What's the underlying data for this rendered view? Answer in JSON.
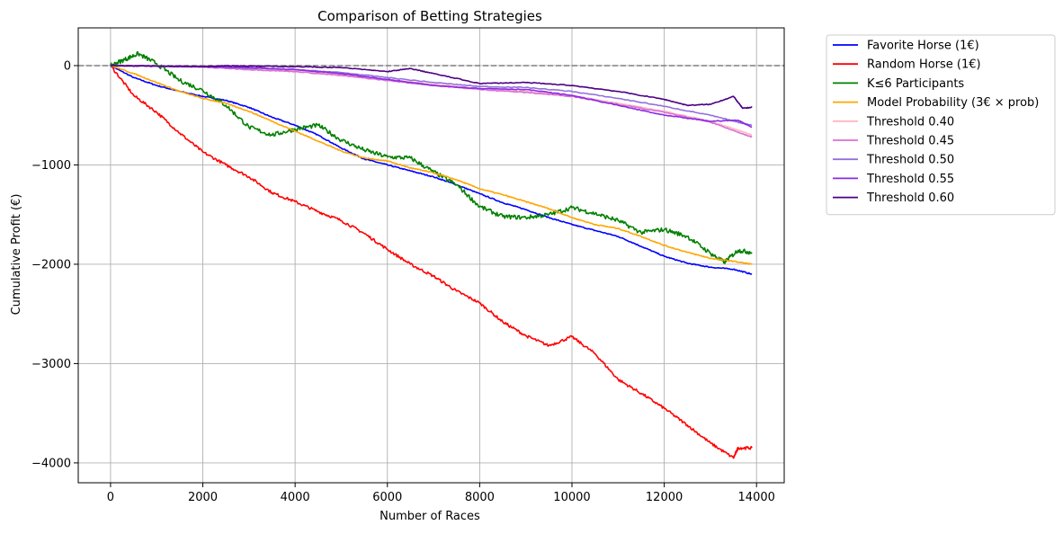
{
  "chart_data": {
    "type": "line",
    "title": "Comparison of Betting Strategies",
    "xlabel": "Number of Races",
    "ylabel": "Cumulative Profit (€)",
    "xlim": [
      -700,
      14600
    ],
    "ylim": [
      -4200,
      380
    ],
    "xticks": [
      0,
      2000,
      4000,
      6000,
      8000,
      10000,
      12000,
      14000
    ],
    "yticks": [
      0,
      -1000,
      -2000,
      -3000,
      -4000
    ],
    "xtick_labels": [
      "0",
      "2000",
      "4000",
      "6000",
      "8000",
      "10000",
      "12000",
      "14000"
    ],
    "ytick_labels": [
      "0",
      "−1000",
      "−2000",
      "−3000",
      "−4000"
    ],
    "grid": true,
    "legend_placement": "outside-right",
    "reference_line": {
      "y": 0,
      "style": "dashed",
      "color": "#7f7f7f"
    },
    "series": [
      {
        "name": "Favorite Horse (1€)",
        "color": "#0000ff",
        "x": [
          0,
          500,
          1000,
          1500,
          2000,
          2500,
          3000,
          3500,
          4000,
          4500,
          5000,
          5500,
          6000,
          6500,
          7000,
          7500,
          8000,
          8500,
          9000,
          9500,
          10000,
          10500,
          11000,
          11500,
          12000,
          12500,
          13000,
          13500,
          13900
        ],
        "y": [
          0,
          -120,
          -200,
          -260,
          -310,
          -350,
          -420,
          -520,
          -600,
          -700,
          -830,
          -940,
          -1000,
          -1060,
          -1120,
          -1200,
          -1290,
          -1380,
          -1450,
          -1530,
          -1600,
          -1660,
          -1720,
          -1820,
          -1920,
          -1990,
          -2030,
          -2050,
          -2100
        ]
      },
      {
        "name": "Random Horse (1€)",
        "color": "#ff0000",
        "x": [
          0,
          500,
          1000,
          1500,
          2000,
          2500,
          3000,
          3500,
          4000,
          4500,
          5000,
          5500,
          6000,
          6500,
          7000,
          7500,
          8000,
          8500,
          9000,
          9500,
          10000,
          10500,
          11000,
          11500,
          12000,
          12500,
          13000,
          13500,
          13600,
          13900
        ],
        "y": [
          0,
          -300,
          -470,
          -680,
          -870,
          -1000,
          -1120,
          -1280,
          -1370,
          -1470,
          -1560,
          -1690,
          -1850,
          -2000,
          -2120,
          -2270,
          -2390,
          -2580,
          -2720,
          -2820,
          -2730,
          -2900,
          -3160,
          -3300,
          -3450,
          -3620,
          -3800,
          -3950,
          -3850,
          -3850
        ]
      },
      {
        "name": "K≤6 Participants",
        "color": "#008000",
        "x": [
          0,
          300,
          600,
          1000,
          1500,
          2000,
          2500,
          3000,
          3500,
          4000,
          4500,
          5000,
          5500,
          6000,
          6500,
          7000,
          7500,
          8000,
          8500,
          9000,
          9500,
          10000,
          10500,
          11000,
          11500,
          12000,
          12500,
          13000,
          13300,
          13600,
          13900
        ],
        "y": [
          0,
          60,
          120,
          20,
          -150,
          -250,
          -400,
          -620,
          -700,
          -640,
          -600,
          -750,
          -850,
          -920,
          -930,
          -1070,
          -1200,
          -1420,
          -1520,
          -1530,
          -1500,
          -1430,
          -1490,
          -1560,
          -1680,
          -1650,
          -1720,
          -1890,
          -1980,
          -1860,
          -1880
        ]
      },
      {
        "name": "Model Probability (3€ × prob)",
        "color": "#ffa500",
        "x": [
          0,
          500,
          1000,
          1500,
          2000,
          2500,
          3000,
          3500,
          4000,
          4500,
          5000,
          5500,
          6000,
          6500,
          7000,
          7500,
          8000,
          8500,
          9000,
          9500,
          10000,
          10500,
          11000,
          11500,
          12000,
          12500,
          13000,
          13500,
          13900
        ],
        "y": [
          0,
          -80,
          -170,
          -260,
          -330,
          -380,
          -460,
          -560,
          -660,
          -760,
          -860,
          -930,
          -960,
          -1030,
          -1080,
          -1150,
          -1240,
          -1300,
          -1370,
          -1440,
          -1530,
          -1600,
          -1640,
          -1720,
          -1810,
          -1880,
          -1940,
          -1970,
          -2000
        ]
      },
      {
        "name": "Threshold 0.40",
        "color": "#ffb6c1",
        "x": [
          0,
          1000,
          2000,
          3000,
          4000,
          5000,
          6000,
          7000,
          8000,
          9000,
          10000,
          11000,
          12000,
          13000,
          13600,
          13900
        ],
        "y": [
          0,
          -5,
          -15,
          -30,
          -50,
          -90,
          -140,
          -190,
          -230,
          -260,
          -300,
          -380,
          -460,
          -560,
          -650,
          -700
        ]
      },
      {
        "name": "Threshold 0.45",
        "color": "#da70d6",
        "x": [
          0,
          1000,
          2000,
          3000,
          4000,
          5000,
          6000,
          7000,
          8000,
          9000,
          10000,
          11000,
          12000,
          13000,
          13600,
          13900
        ],
        "y": [
          0,
          -5,
          -15,
          -40,
          -60,
          -100,
          -150,
          -200,
          -240,
          -270,
          -310,
          -390,
          -470,
          -570,
          -670,
          -720
        ]
      },
      {
        "name": "Threshold 0.50",
        "color": "#9370db",
        "x": [
          0,
          1000,
          2000,
          3000,
          4000,
          5000,
          6000,
          7000,
          8000,
          9000,
          10000,
          11000,
          12000,
          13000,
          13600,
          13900
        ],
        "y": [
          0,
          -5,
          -10,
          -25,
          -40,
          -70,
          -120,
          -170,
          -210,
          -220,
          -260,
          -330,
          -410,
          -500,
          -570,
          -600
        ]
      },
      {
        "name": "Threshold 0.55",
        "color": "#8a2be2",
        "x": [
          0,
          1000,
          2000,
          3000,
          4000,
          5000,
          6000,
          7000,
          8000,
          9000,
          10000,
          11000,
          12000,
          13000,
          13600,
          13900
        ],
        "y": [
          0,
          -5,
          -10,
          -20,
          -40,
          -80,
          -140,
          -200,
          -230,
          -240,
          -300,
          -400,
          -500,
          -560,
          -550,
          -620
        ]
      },
      {
        "name": "Threshold 0.60",
        "color": "#4b0082",
        "x": [
          0,
          1000,
          2000,
          2500,
          3000,
          4000,
          5000,
          6000,
          6500,
          7000,
          8000,
          9000,
          10000,
          11000,
          12000,
          12500,
          13000,
          13500,
          13700,
          13900
        ],
        "y": [
          0,
          -5,
          -10,
          0,
          -5,
          -10,
          -20,
          -60,
          -30,
          -80,
          -180,
          -170,
          -200,
          -260,
          -340,
          -400,
          -390,
          -310,
          -430,
          -420
        ]
      }
    ]
  }
}
